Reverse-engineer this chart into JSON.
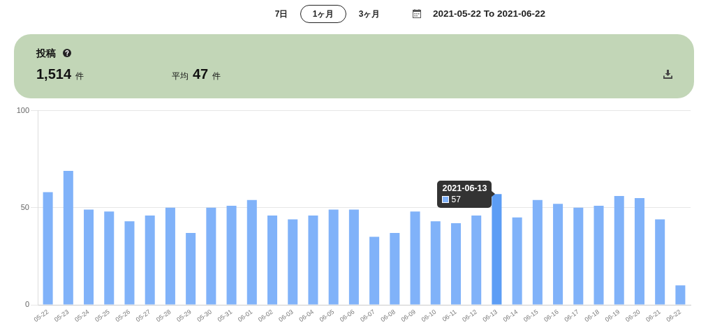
{
  "chart_data": {
    "type": "bar",
    "title": "投稿",
    "categories": [
      "05-22",
      "05-23",
      "05-24",
      "05-25",
      "05-26",
      "05-27",
      "05-28",
      "05-29",
      "05-30",
      "05-31",
      "06-01",
      "06-02",
      "06-03",
      "06-04",
      "06-05",
      "06-06",
      "06-07",
      "06-08",
      "06-09",
      "06-10",
      "06-11",
      "06-12",
      "06-13",
      "06-14",
      "06-15",
      "06-16",
      "06-17",
      "06-18",
      "06-19",
      "06-20",
      "06-21",
      "06-22"
    ],
    "values": [
      58,
      69,
      49,
      48,
      43,
      46,
      50,
      37,
      50,
      51,
      54,
      46,
      44,
      46,
      49,
      49,
      35,
      37,
      48,
      43,
      42,
      46,
      57,
      45,
      54,
      52,
      50,
      51,
      56,
      55,
      44,
      10
    ],
    "colors": [
      "#80b2f9",
      "#80b2f9",
      "#80b2f9",
      "#80b2f9",
      "#80b2f9",
      "#80b2f9",
      "#80b2f9",
      "#80b2f9",
      "#80b2f9",
      "#80b2f9",
      "#80b2f9",
      "#80b2f9",
      "#80b2f9",
      "#80b2f9",
      "#80b2f9",
      "#80b2f9",
      "#80b2f9",
      "#80b2f9",
      "#80b2f9",
      "#80b2f9",
      "#80b2f9",
      "#80b2f9",
      "#5c9df5",
      "#80b2f9",
      "#80b2f9",
      "#80b2f9",
      "#80b2f9",
      "#80b2f9",
      "#80b2f9",
      "#80b2f9",
      "#80b2f9",
      "#80b2f9"
    ],
    "ylim": [
      0,
      100
    ],
    "yticks": [
      0,
      50,
      100
    ],
    "grid": "y",
    "annotations": [
      "7日",
      "1ヶ月",
      "3ヶ月",
      "2021-05-22 To 2021-06-22",
      "1,514 件",
      "平均 47 件",
      {
        "text": "2021-06-13",
        "x": "06-13",
        "y": 57
      },
      "57"
    ]
  }
}
